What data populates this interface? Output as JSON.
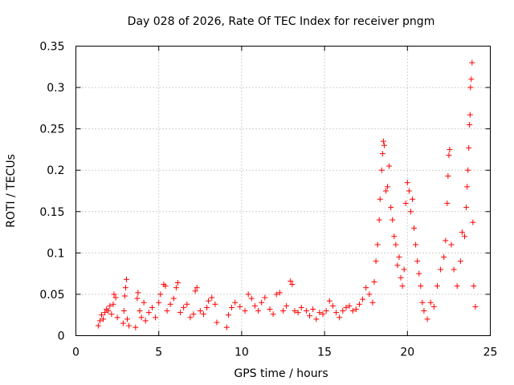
{
  "chart_data": {
    "type": "scatter",
    "title": "Day 028 of 2026, Rate Of TEC Index for receiver pngm",
    "xlabel": "GPS time / hours",
    "ylabel": "ROTI / TECUs",
    "xlim": [
      0,
      25
    ],
    "ylim": [
      0,
      0.35
    ],
    "grid": true,
    "x_ticks": [
      0,
      5,
      10,
      15,
      20,
      25
    ],
    "y_ticks": [
      0,
      0.05,
      0.1,
      0.15,
      0.2,
      0.25,
      0.3,
      0.35
    ],
    "x_tick_labels": [
      "0",
      "5",
      "10",
      "15",
      "20",
      "25"
    ],
    "y_tick_labels": [
      "0",
      "0.05",
      "0.1",
      "0.15",
      "0.2",
      "0.25",
      "0.3",
      "0.35"
    ],
    "marker": "plus",
    "color": "#ff0000",
    "series": [
      {
        "name": "ROTI",
        "points": [
          [
            1.35,
            0.012
          ],
          [
            1.45,
            0.018
          ],
          [
            1.55,
            0.025
          ],
          [
            1.65,
            0.02
          ],
          [
            1.75,
            0.028
          ],
          [
            1.85,
            0.032
          ],
          [
            1.95,
            0.03
          ],
          [
            2.05,
            0.036
          ],
          [
            2.15,
            0.026
          ],
          [
            2.25,
            0.038
          ],
          [
            2.3,
            0.05
          ],
          [
            2.4,
            0.046
          ],
          [
            2.5,
            0.022
          ],
          [
            2.85,
            0.015
          ],
          [
            2.9,
            0.03
          ],
          [
            2.95,
            0.048
          ],
          [
            3.0,
            0.058
          ],
          [
            3.05,
            0.068
          ],
          [
            3.1,
            0.02
          ],
          [
            3.2,
            0.012
          ],
          [
            3.6,
            0.01
          ],
          [
            3.7,
            0.045
          ],
          [
            3.75,
            0.052
          ],
          [
            3.85,
            0.03
          ],
          [
            3.95,
            0.022
          ],
          [
            4.1,
            0.04
          ],
          [
            4.2,
            0.018
          ],
          [
            4.4,
            0.028
          ],
          [
            4.6,
            0.034
          ],
          [
            4.8,
            0.022
          ],
          [
            5.0,
            0.04
          ],
          [
            5.1,
            0.05
          ],
          [
            5.3,
            0.062
          ],
          [
            5.4,
            0.06
          ],
          [
            5.5,
            0.03
          ],
          [
            5.7,
            0.038
          ],
          [
            5.9,
            0.045
          ],
          [
            6.05,
            0.058
          ],
          [
            6.15,
            0.064
          ],
          [
            6.3,
            0.028
          ],
          [
            6.5,
            0.034
          ],
          [
            6.7,
            0.038
          ],
          [
            6.9,
            0.022
          ],
          [
            7.1,
            0.026
          ],
          [
            7.2,
            0.054
          ],
          [
            7.3,
            0.058
          ],
          [
            7.5,
            0.03
          ],
          [
            7.7,
            0.026
          ],
          [
            7.9,
            0.034
          ],
          [
            8.0,
            0.042
          ],
          [
            8.2,
            0.046
          ],
          [
            8.4,
            0.038
          ],
          [
            8.5,
            0.016
          ],
          [
            9.1,
            0.01
          ],
          [
            9.2,
            0.025
          ],
          [
            9.4,
            0.034
          ],
          [
            9.6,
            0.04
          ],
          [
            9.9,
            0.035
          ],
          [
            10.2,
            0.03
          ],
          [
            10.4,
            0.05
          ],
          [
            10.6,
            0.045
          ],
          [
            10.8,
            0.036
          ],
          [
            11.0,
            0.03
          ],
          [
            11.2,
            0.04
          ],
          [
            11.4,
            0.046
          ],
          [
            11.7,
            0.032
          ],
          [
            11.9,
            0.026
          ],
          [
            12.1,
            0.05
          ],
          [
            12.3,
            0.052
          ],
          [
            12.5,
            0.03
          ],
          [
            12.7,
            0.036
          ],
          [
            12.95,
            0.066
          ],
          [
            13.05,
            0.062
          ],
          [
            13.2,
            0.03
          ],
          [
            13.4,
            0.028
          ],
          [
            13.6,
            0.034
          ],
          [
            13.9,
            0.03
          ],
          [
            14.1,
            0.024
          ],
          [
            14.3,
            0.032
          ],
          [
            14.5,
            0.02
          ],
          [
            14.7,
            0.028
          ],
          [
            14.9,
            0.026
          ],
          [
            15.1,
            0.03
          ],
          [
            15.3,
            0.042
          ],
          [
            15.5,
            0.036
          ],
          [
            15.7,
            0.028
          ],
          [
            15.9,
            0.022
          ],
          [
            16.1,
            0.03
          ],
          [
            16.3,
            0.034
          ],
          [
            16.5,
            0.036
          ],
          [
            16.7,
            0.03
          ],
          [
            16.9,
            0.032
          ],
          [
            17.1,
            0.038
          ],
          [
            17.3,
            0.044
          ],
          [
            17.5,
            0.058
          ],
          [
            17.7,
            0.05
          ],
          [
            17.9,
            0.04
          ],
          [
            18.0,
            0.065
          ],
          [
            18.1,
            0.09
          ],
          [
            18.2,
            0.11
          ],
          [
            18.3,
            0.14
          ],
          [
            18.35,
            0.165
          ],
          [
            18.45,
            0.2
          ],
          [
            18.5,
            0.22
          ],
          [
            18.55,
            0.235
          ],
          [
            18.6,
            0.23
          ],
          [
            18.7,
            0.175
          ],
          [
            18.8,
            0.18
          ],
          [
            18.9,
            0.205
          ],
          [
            19.0,
            0.155
          ],
          [
            19.1,
            0.14
          ],
          [
            19.2,
            0.12
          ],
          [
            19.3,
            0.11
          ],
          [
            19.4,
            0.085
          ],
          [
            19.5,
            0.095
          ],
          [
            19.6,
            0.07
          ],
          [
            19.7,
            0.06
          ],
          [
            19.8,
            0.08
          ],
          [
            19.9,
            0.16
          ],
          [
            20.0,
            0.185
          ],
          [
            20.1,
            0.175
          ],
          [
            20.2,
            0.15
          ],
          [
            20.3,
            0.165
          ],
          [
            20.4,
            0.13
          ],
          [
            20.5,
            0.11
          ],
          [
            20.6,
            0.09
          ],
          [
            20.7,
            0.075
          ],
          [
            20.8,
            0.06
          ],
          [
            20.9,
            0.04
          ],
          [
            21.0,
            0.03
          ],
          [
            21.2,
            0.02
          ],
          [
            21.4,
            0.04
          ],
          [
            21.6,
            0.035
          ],
          [
            21.8,
            0.06
          ],
          [
            22.0,
            0.08
          ],
          [
            22.2,
            0.095
          ],
          [
            22.3,
            0.115
          ],
          [
            22.4,
            0.16
          ],
          [
            22.45,
            0.193
          ],
          [
            22.5,
            0.218
          ],
          [
            22.55,
            0.225
          ],
          [
            22.65,
            0.11
          ],
          [
            22.8,
            0.08
          ],
          [
            23.0,
            0.06
          ],
          [
            23.2,
            0.09
          ],
          [
            23.3,
            0.125
          ],
          [
            23.45,
            0.12
          ],
          [
            23.55,
            0.155
          ],
          [
            23.6,
            0.18
          ],
          [
            23.65,
            0.2
          ],
          [
            23.7,
            0.227
          ],
          [
            23.75,
            0.255
          ],
          [
            23.78,
            0.267
          ],
          [
            23.8,
            0.3
          ],
          [
            23.85,
            0.31
          ],
          [
            23.9,
            0.33
          ],
          [
            23.95,
            0.137
          ],
          [
            24.0,
            0.06
          ],
          [
            24.1,
            0.035
          ]
        ]
      }
    ]
  }
}
